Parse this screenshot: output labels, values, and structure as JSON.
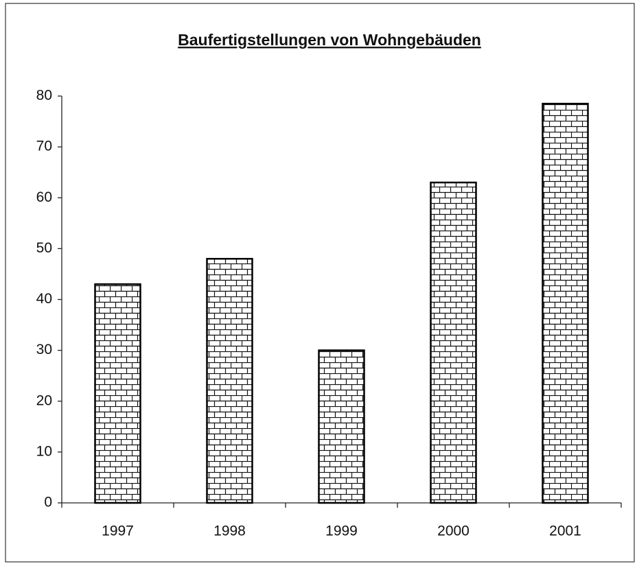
{
  "chart_data": {
    "type": "bar",
    "title": "Baufertigstellungen von Wohngebäuden",
    "categories": [
      "1997",
      "1998",
      "1999",
      "2000",
      "2001"
    ],
    "values": [
      43,
      48,
      30,
      63,
      78.5
    ],
    "color": "#000000",
    "ylim": [
      0,
      80
    ],
    "yticks": [
      0,
      10,
      20,
      30,
      40,
      50,
      60,
      70,
      80
    ],
    "grid": false
  }
}
